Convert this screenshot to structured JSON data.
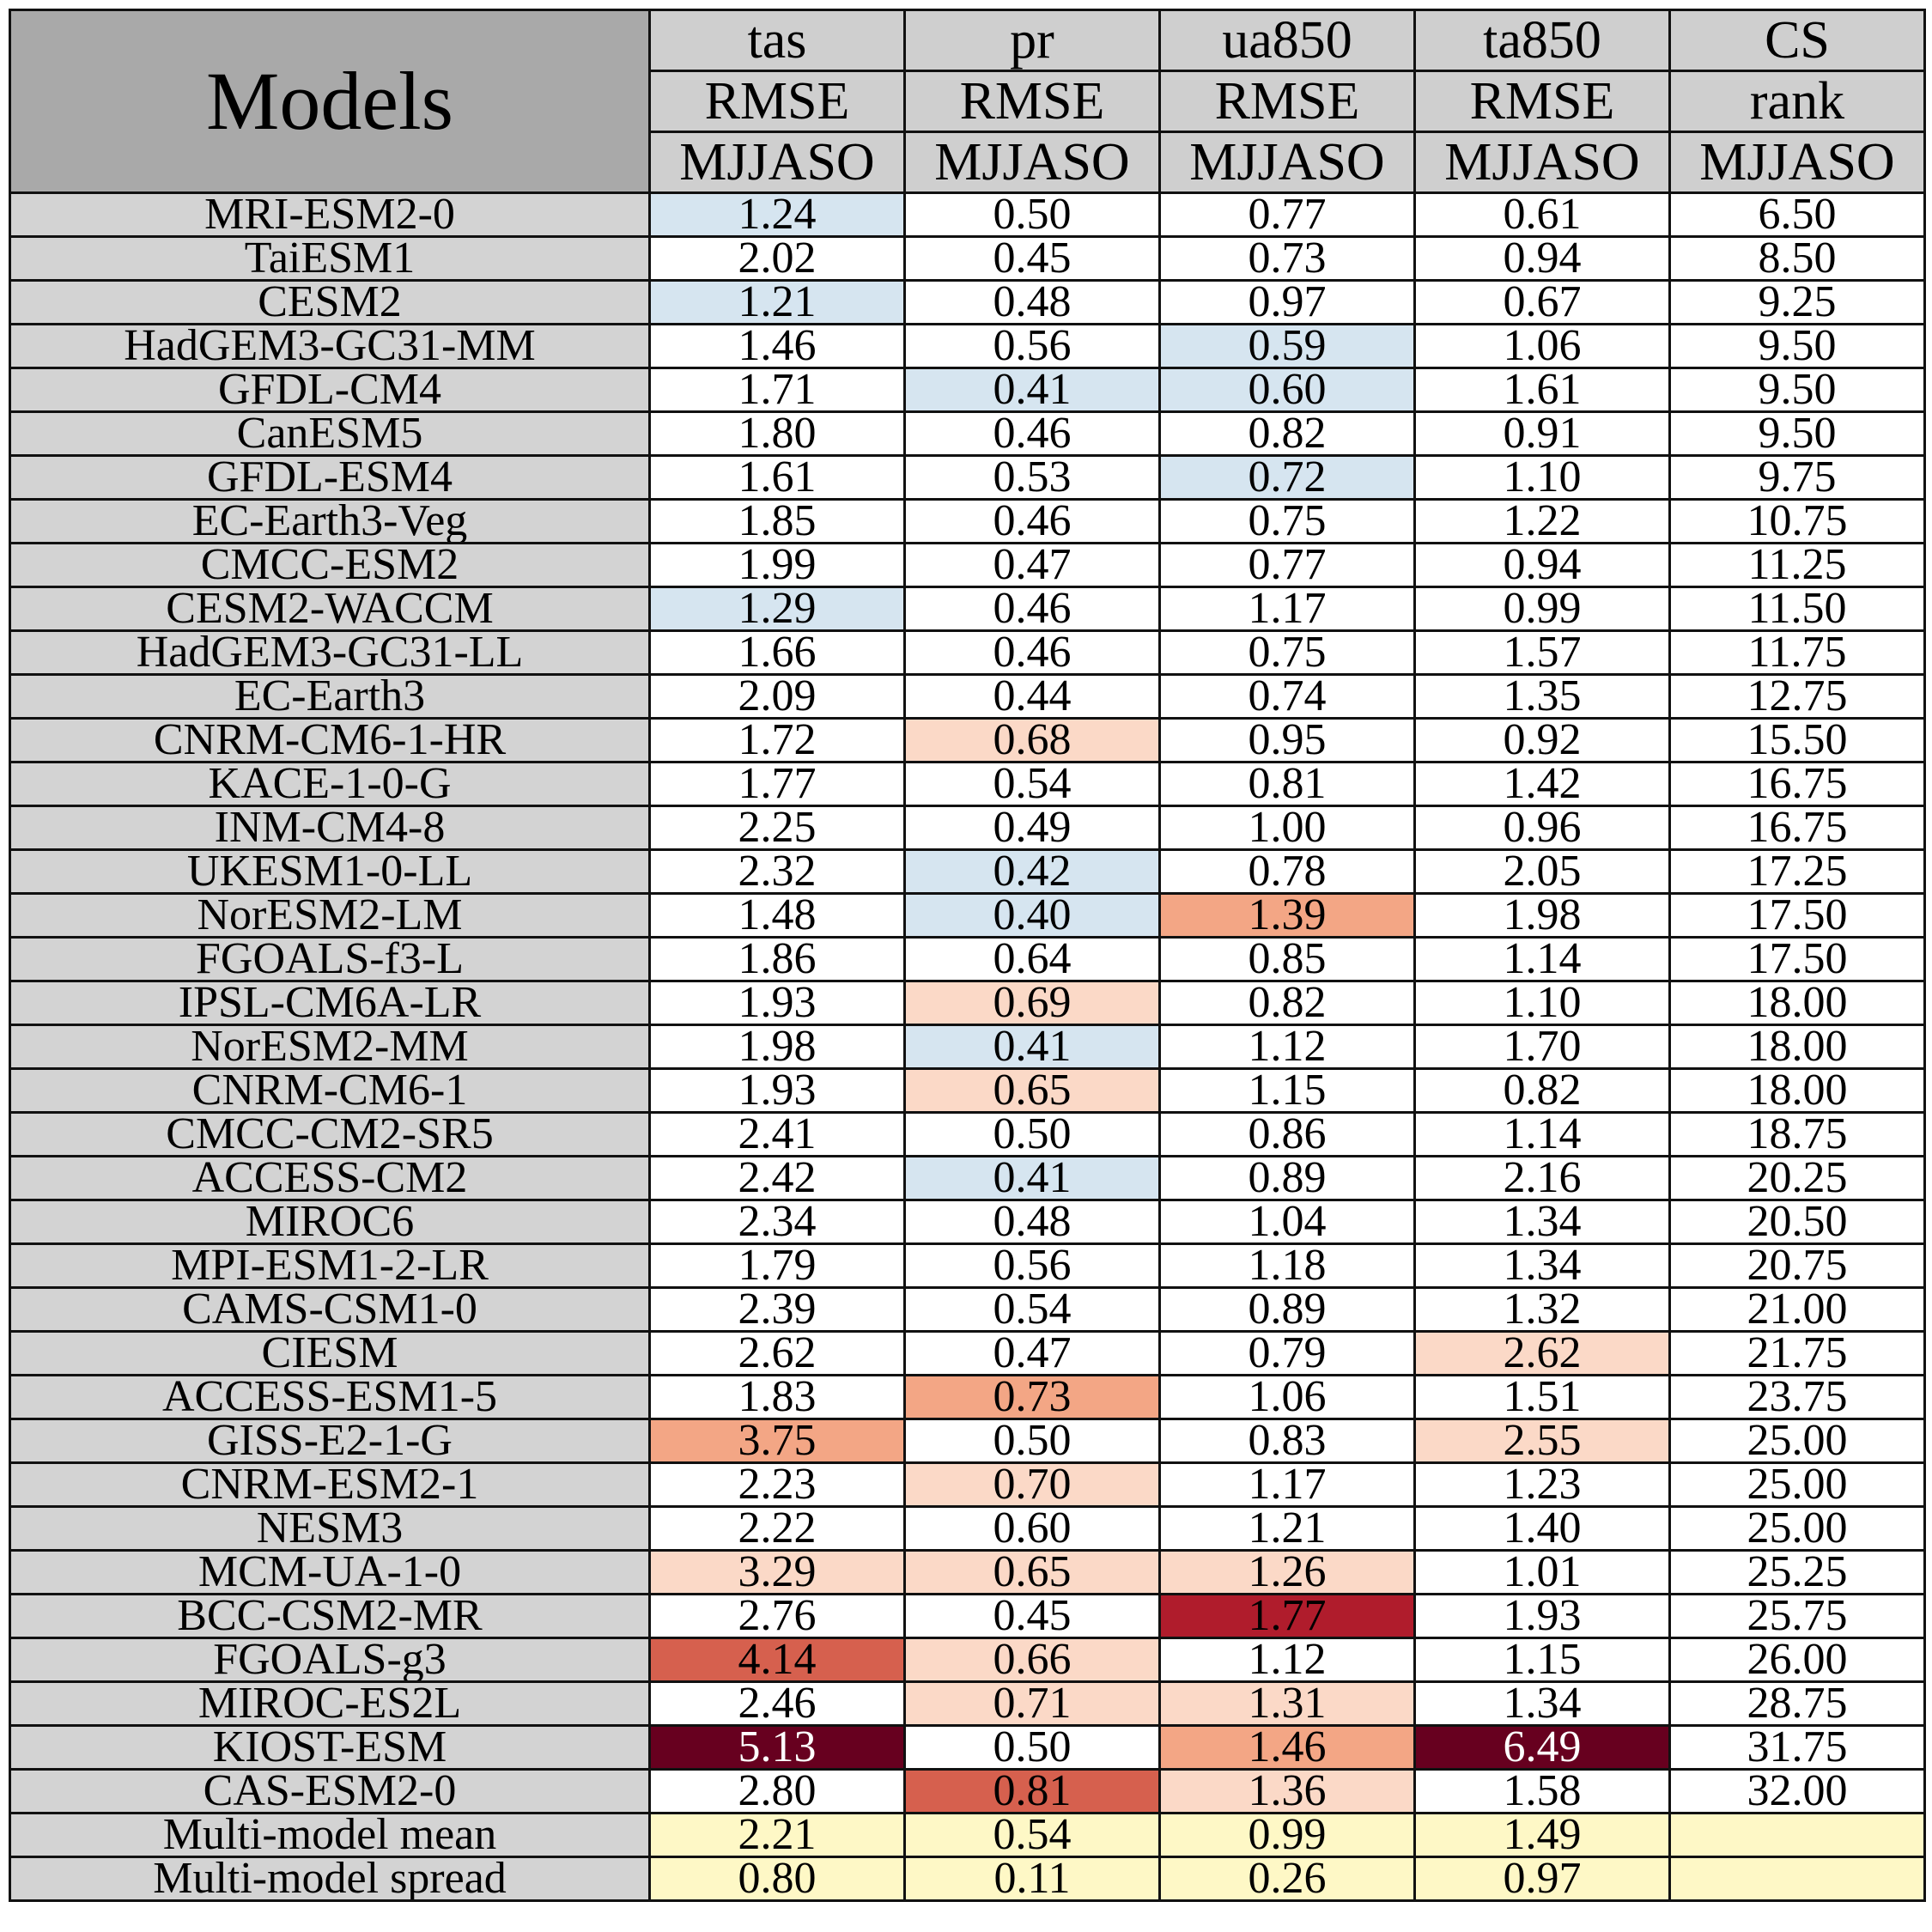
{
  "header": {
    "models_label": "Models",
    "columns": [
      {
        "var": "tas",
        "metric": "RMSE",
        "season": "MJJASO"
      },
      {
        "var": "pr",
        "metric": "RMSE",
        "season": "MJJASO"
      },
      {
        "var": "ua850",
        "metric": "RMSE",
        "season": "MJJASO"
      },
      {
        "var": "ta850",
        "metric": "RMSE",
        "season": "MJJASO"
      },
      {
        "var": "CS",
        "metric": "rank",
        "season": "MJJASO"
      }
    ]
  },
  "colors": {
    "header_gray": "#cfcfcf",
    "models_header_gray": "#a9a9a9",
    "name_gray": "#d3d3d3",
    "best_blue": "#d6e5f0",
    "light_salmon": "#fbd9c7",
    "salmon": "#f3a685",
    "red_orange": "#d6604e",
    "red": "#b01c2c",
    "dark_red": "#67001f",
    "summary_yellow": "#fef8c6"
  },
  "rows": [
    {
      "model": "MRI-ESM2-0",
      "values": [
        "1.24",
        "0.50",
        "0.77",
        "0.61",
        "6.50"
      ],
      "shade": [
        "best_blue",
        "",
        "",
        "",
        ""
      ]
    },
    {
      "model": "TaiESM1",
      "values": [
        "2.02",
        "0.45",
        "0.73",
        "0.94",
        "8.50"
      ],
      "shade": [
        "",
        "",
        "",
        "",
        ""
      ]
    },
    {
      "model": "CESM2",
      "values": [
        "1.21",
        "0.48",
        "0.97",
        "0.67",
        "9.25"
      ],
      "shade": [
        "best_blue",
        "",
        "",
        "",
        ""
      ]
    },
    {
      "model": "HadGEM3-GC31-MM",
      "values": [
        "1.46",
        "0.56",
        "0.59",
        "1.06",
        "9.50"
      ],
      "shade": [
        "",
        "",
        "best_blue",
        "",
        ""
      ]
    },
    {
      "model": "GFDL-CM4",
      "values": [
        "1.71",
        "0.41",
        "0.60",
        "1.61",
        "9.50"
      ],
      "shade": [
        "",
        "best_blue",
        "best_blue",
        "",
        ""
      ]
    },
    {
      "model": "CanESM5",
      "values": [
        "1.80",
        "0.46",
        "0.82",
        "0.91",
        "9.50"
      ],
      "shade": [
        "",
        "",
        "",
        "",
        ""
      ]
    },
    {
      "model": "GFDL-ESM4",
      "values": [
        "1.61",
        "0.53",
        "0.72",
        "1.10",
        "9.75"
      ],
      "shade": [
        "",
        "",
        "best_blue",
        "",
        ""
      ]
    },
    {
      "model": "EC-Earth3-Veg",
      "values": [
        "1.85",
        "0.46",
        "0.75",
        "1.22",
        "10.75"
      ],
      "shade": [
        "",
        "",
        "",
        "",
        ""
      ]
    },
    {
      "model": "CMCC-ESM2",
      "values": [
        "1.99",
        "0.47",
        "0.77",
        "0.94",
        "11.25"
      ],
      "shade": [
        "",
        "",
        "",
        "",
        ""
      ]
    },
    {
      "model": "CESM2-WACCM",
      "values": [
        "1.29",
        "0.46",
        "1.17",
        "0.99",
        "11.50"
      ],
      "shade": [
        "best_blue",
        "",
        "",
        "",
        ""
      ]
    },
    {
      "model": "HadGEM3-GC31-LL",
      "values": [
        "1.66",
        "0.46",
        "0.75",
        "1.57",
        "11.75"
      ],
      "shade": [
        "",
        "",
        "",
        "",
        ""
      ]
    },
    {
      "model": "EC-Earth3",
      "values": [
        "2.09",
        "0.44",
        "0.74",
        "1.35",
        "12.75"
      ],
      "shade": [
        "",
        "",
        "",
        "",
        ""
      ]
    },
    {
      "model": "CNRM-CM6-1-HR",
      "values": [
        "1.72",
        "0.68",
        "0.95",
        "0.92",
        "15.50"
      ],
      "shade": [
        "",
        "light_salmon",
        "",
        "",
        ""
      ]
    },
    {
      "model": "KACE-1-0-G",
      "values": [
        "1.77",
        "0.54",
        "0.81",
        "1.42",
        "16.75"
      ],
      "shade": [
        "",
        "",
        "",
        "",
        ""
      ]
    },
    {
      "model": "INM-CM4-8",
      "values": [
        "2.25",
        "0.49",
        "1.00",
        "0.96",
        "16.75"
      ],
      "shade": [
        "",
        "",
        "",
        "",
        ""
      ]
    },
    {
      "model": "UKESM1-0-LL",
      "values": [
        "2.32",
        "0.42",
        "0.78",
        "2.05",
        "17.25"
      ],
      "shade": [
        "",
        "best_blue",
        "",
        "",
        ""
      ]
    },
    {
      "model": "NorESM2-LM",
      "values": [
        "1.48",
        "0.40",
        "1.39",
        "1.98",
        "17.50"
      ],
      "shade": [
        "",
        "best_blue",
        "salmon",
        "",
        ""
      ]
    },
    {
      "model": "FGOALS-f3-L",
      "values": [
        "1.86",
        "0.64",
        "0.85",
        "1.14",
        "17.50"
      ],
      "shade": [
        "",
        "",
        "",
        "",
        ""
      ]
    },
    {
      "model": "IPSL-CM6A-LR",
      "values": [
        "1.93",
        "0.69",
        "0.82",
        "1.10",
        "18.00"
      ],
      "shade": [
        "",
        "light_salmon",
        "",
        "",
        ""
      ]
    },
    {
      "model": "NorESM2-MM",
      "values": [
        "1.98",
        "0.41",
        "1.12",
        "1.70",
        "18.00"
      ],
      "shade": [
        "",
        "best_blue",
        "",
        "",
        ""
      ]
    },
    {
      "model": "CNRM-CM6-1",
      "values": [
        "1.93",
        "0.65",
        "1.15",
        "0.82",
        "18.00"
      ],
      "shade": [
        "",
        "light_salmon",
        "",
        "",
        ""
      ]
    },
    {
      "model": "CMCC-CM2-SR5",
      "values": [
        "2.41",
        "0.50",
        "0.86",
        "1.14",
        "18.75"
      ],
      "shade": [
        "",
        "",
        "",
        "",
        ""
      ]
    },
    {
      "model": "ACCESS-CM2",
      "values": [
        "2.42",
        "0.41",
        "0.89",
        "2.16",
        "20.25"
      ],
      "shade": [
        "",
        "best_blue",
        "",
        "",
        ""
      ]
    },
    {
      "model": "MIROC6",
      "values": [
        "2.34",
        "0.48",
        "1.04",
        "1.34",
        "20.50"
      ],
      "shade": [
        "",
        "",
        "",
        "",
        ""
      ]
    },
    {
      "model": "MPI-ESM1-2-LR",
      "values": [
        "1.79",
        "0.56",
        "1.18",
        "1.34",
        "20.75"
      ],
      "shade": [
        "",
        "",
        "",
        "",
        ""
      ]
    },
    {
      "model": "CAMS-CSM1-0",
      "values": [
        "2.39",
        "0.54",
        "0.89",
        "1.32",
        "21.00"
      ],
      "shade": [
        "",
        "",
        "",
        "",
        ""
      ]
    },
    {
      "model": "CIESM",
      "values": [
        "2.62",
        "0.47",
        "0.79",
        "2.62",
        "21.75"
      ],
      "shade": [
        "",
        "",
        "",
        "light_salmon",
        ""
      ]
    },
    {
      "model": "ACCESS-ESM1-5",
      "values": [
        "1.83",
        "0.73",
        "1.06",
        "1.51",
        "23.75"
      ],
      "shade": [
        "",
        "salmon",
        "",
        "",
        ""
      ]
    },
    {
      "model": "GISS-E2-1-G",
      "values": [
        "3.75",
        "0.50",
        "0.83",
        "2.55",
        "25.00"
      ],
      "shade": [
        "salmon",
        "",
        "",
        "light_salmon",
        ""
      ]
    },
    {
      "model": "CNRM-ESM2-1",
      "values": [
        "2.23",
        "0.70",
        "1.17",
        "1.23",
        "25.00"
      ],
      "shade": [
        "",
        "light_salmon",
        "",
        "",
        ""
      ]
    },
    {
      "model": "NESM3",
      "values": [
        "2.22",
        "0.60",
        "1.21",
        "1.40",
        "25.00"
      ],
      "shade": [
        "",
        "",
        "",
        "",
        ""
      ]
    },
    {
      "model": "MCM-UA-1-0",
      "values": [
        "3.29",
        "0.65",
        "1.26",
        "1.01",
        "25.25"
      ],
      "shade": [
        "light_salmon",
        "light_salmon",
        "light_salmon",
        "",
        ""
      ]
    },
    {
      "model": "BCC-CSM2-MR",
      "values": [
        "2.76",
        "0.45",
        "1.77",
        "1.93",
        "25.75"
      ],
      "shade": [
        "",
        "",
        "red",
        "",
        ""
      ]
    },
    {
      "model": "FGOALS-g3",
      "values": [
        "4.14",
        "0.66",
        "1.12",
        "1.15",
        "26.00"
      ],
      "shade": [
        "red_orange",
        "light_salmon",
        "",
        "",
        ""
      ]
    },
    {
      "model": "MIROC-ES2L",
      "values": [
        "2.46",
        "0.71",
        "1.31",
        "1.34",
        "28.75"
      ],
      "shade": [
        "",
        "light_salmon",
        "light_salmon",
        "",
        ""
      ]
    },
    {
      "model": "KIOST-ESM",
      "values": [
        "5.13",
        "0.50",
        "1.46",
        "6.49",
        "31.75"
      ],
      "shade": [
        "dark_red",
        "",
        "salmon",
        "dark_red",
        ""
      ]
    },
    {
      "model": "CAS-ESM2-0",
      "values": [
        "2.80",
        "0.81",
        "1.36",
        "1.58",
        "32.00"
      ],
      "shade": [
        "",
        "red_orange",
        "light_salmon",
        "",
        ""
      ]
    }
  ],
  "summary": [
    {
      "label": "Multi-model mean",
      "values": [
        "2.21",
        "0.54",
        "0.99",
        "1.49",
        ""
      ]
    },
    {
      "label": "Multi-model spread",
      "values": [
        "0.80",
        "0.11",
        "0.26",
        "0.97",
        ""
      ]
    }
  ]
}
